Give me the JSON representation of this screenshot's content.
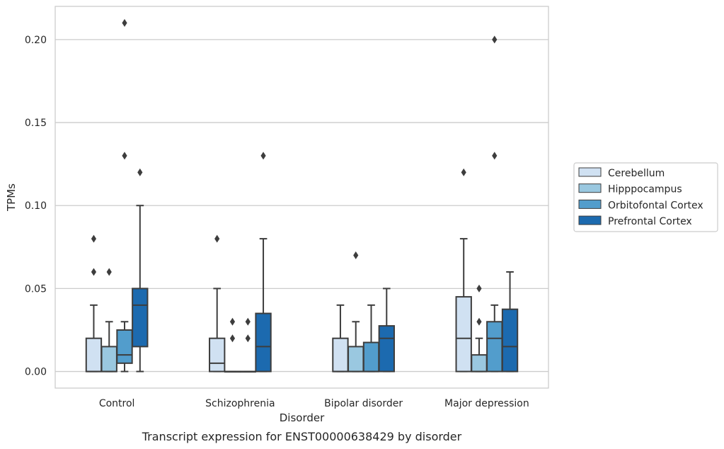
{
  "chart_data": {
    "type": "box",
    "title": "Transcript expression for ENST00000638429 by disorder",
    "xlabel": "Disorder",
    "ylabel": "TPMs",
    "ylim": [
      -0.01,
      0.22
    ],
    "yticks": [
      0.0,
      0.05,
      0.1,
      0.15,
      0.2
    ],
    "ytick_labels": [
      "0.00",
      "0.05",
      "0.10",
      "0.15",
      "0.20"
    ],
    "grid": "horizontal",
    "legend_position": "right",
    "categories": [
      "Control",
      "Schizophrenia",
      "Bipolar disorder",
      "Major depression"
    ],
    "series": [
      {
        "name": "Cerebellum",
        "color": "#d0e1f2",
        "boxes": [
          {
            "whislo": 0.0,
            "q1": 0.0,
            "med": 0.0,
            "q3": 0.02,
            "whishi": 0.04,
            "fliers": [
              0.06,
              0.08
            ]
          },
          {
            "whislo": 0.0,
            "q1": 0.0,
            "med": 0.005,
            "q3": 0.02,
            "whishi": 0.05,
            "fliers": [
              0.08
            ]
          },
          {
            "whislo": 0.0,
            "q1": 0.0,
            "med": 0.0,
            "q3": 0.02,
            "whishi": 0.04,
            "fliers": []
          },
          {
            "whislo": 0.0,
            "q1": 0.0,
            "med": 0.02,
            "q3": 0.045,
            "whishi": 0.08,
            "fliers": [
              0.12
            ]
          }
        ]
      },
      {
        "name": "Hipppocampus",
        "color": "#9ac8e0",
        "boxes": [
          {
            "whislo": 0.0,
            "q1": 0.0,
            "med": 0.0,
            "q3": 0.015,
            "whishi": 0.03,
            "fliers": [
              0.06
            ]
          },
          {
            "whislo": 0.0,
            "q1": 0.0,
            "med": 0.0,
            "q3": 0.0,
            "whishi": 0.0,
            "fliers": [
              0.02,
              0.03
            ]
          },
          {
            "whislo": 0.0,
            "q1": 0.0,
            "med": 0.0,
            "q3": 0.015,
            "whishi": 0.03,
            "fliers": [
              0.07
            ]
          },
          {
            "whislo": 0.0,
            "q1": 0.0,
            "med": 0.0,
            "q3": 0.01,
            "whishi": 0.02,
            "fliers": [
              0.03,
              0.05
            ]
          }
        ]
      },
      {
        "name": "Orbitofontal Cortex",
        "color": "#529dcc",
        "boxes": [
          {
            "whislo": 0.0,
            "q1": 0.005,
            "med": 0.01,
            "q3": 0.025,
            "whishi": 0.03,
            "fliers": [
              0.13,
              0.21
            ]
          },
          {
            "whislo": 0.0,
            "q1": 0.0,
            "med": 0.0,
            "q3": 0.0,
            "whishi": 0.0,
            "fliers": [
              0.02,
              0.03
            ]
          },
          {
            "whislo": 0.0,
            "q1": 0.0,
            "med": 0.0,
            "q3": 0.0175,
            "whishi": 0.04,
            "fliers": []
          },
          {
            "whislo": 0.0,
            "q1": 0.0,
            "med": 0.02,
            "q3": 0.03,
            "whishi": 0.04,
            "fliers": [
              0.13,
              0.2
            ]
          }
        ]
      },
      {
        "name": "Prefrontal Cortex",
        "color": "#1c6aaf",
        "boxes": [
          {
            "whislo": 0.0,
            "q1": 0.015,
            "med": 0.04,
            "q3": 0.05,
            "whishi": 0.1,
            "fliers": [
              0.12
            ]
          },
          {
            "whislo": 0.0,
            "q1": 0.0,
            "med": 0.015,
            "q3": 0.035,
            "whishi": 0.08,
            "fliers": [
              0.13
            ]
          },
          {
            "whislo": 0.0,
            "q1": 0.0,
            "med": 0.02,
            "q3": 0.0275,
            "whishi": 0.05,
            "fliers": []
          },
          {
            "whislo": 0.0,
            "q1": 0.0,
            "med": 0.015,
            "q3": 0.0375,
            "whishi": 0.06,
            "fliers": []
          }
        ]
      }
    ]
  }
}
